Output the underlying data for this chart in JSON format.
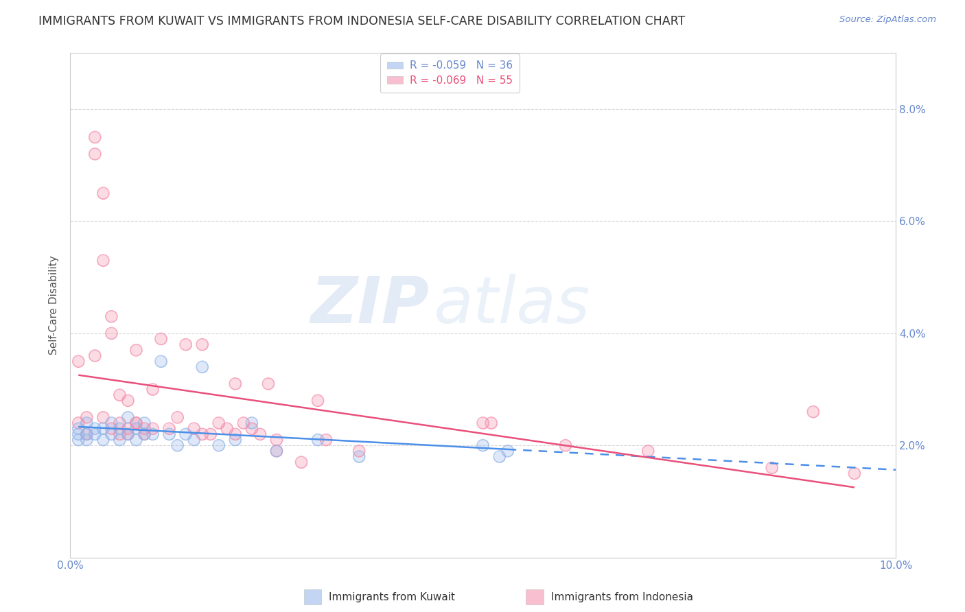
{
  "title": "IMMIGRANTS FROM KUWAIT VS IMMIGRANTS FROM INDONESIA SELF-CARE DISABILITY CORRELATION CHART",
  "source": "Source: ZipAtlas.com",
  "ylabel": "Self-Care Disability",
  "xlim": [
    0,
    0.1
  ],
  "ylim": [
    0,
    0.09
  ],
  "yticks": [
    0.0,
    0.02,
    0.04,
    0.06,
    0.08
  ],
  "ytick_labels": [
    "",
    "2.0%",
    "4.0%",
    "6.0%",
    "8.0%"
  ],
  "xticks": [
    0.0,
    0.02,
    0.04,
    0.06,
    0.08,
    0.1
  ],
  "xtick_labels": [
    "0.0%",
    "",
    "",
    "",
    "",
    "10.0%"
  ],
  "kuwait_color": "#92b4e8",
  "indonesia_color": "#f48caa",
  "kuwait_R": -0.059,
  "kuwait_N": 36,
  "indonesia_R": -0.069,
  "indonesia_N": 55,
  "kuwait_points_x": [
    0.001,
    0.001,
    0.001,
    0.002,
    0.002,
    0.002,
    0.003,
    0.003,
    0.004,
    0.004,
    0.005,
    0.005,
    0.006,
    0.006,
    0.007,
    0.007,
    0.008,
    0.008,
    0.009,
    0.009,
    0.01,
    0.011,
    0.012,
    0.013,
    0.014,
    0.015,
    0.016,
    0.018,
    0.02,
    0.022,
    0.025,
    0.03,
    0.035,
    0.05,
    0.052,
    0.053
  ],
  "kuwait_points_y": [
    0.022,
    0.023,
    0.021,
    0.022,
    0.024,
    0.021,
    0.023,
    0.022,
    0.023,
    0.021,
    0.024,
    0.022,
    0.023,
    0.021,
    0.025,
    0.022,
    0.023,
    0.021,
    0.024,
    0.022,
    0.022,
    0.035,
    0.022,
    0.02,
    0.022,
    0.021,
    0.034,
    0.02,
    0.021,
    0.024,
    0.019,
    0.021,
    0.018,
    0.02,
    0.018,
    0.019
  ],
  "indonesia_points_x": [
    0.001,
    0.001,
    0.002,
    0.002,
    0.003,
    0.003,
    0.003,
    0.004,
    0.004,
    0.004,
    0.005,
    0.005,
    0.005,
    0.006,
    0.006,
    0.006,
    0.007,
    0.007,
    0.007,
    0.008,
    0.008,
    0.008,
    0.009,
    0.009,
    0.01,
    0.01,
    0.011,
    0.012,
    0.013,
    0.014,
    0.015,
    0.016,
    0.017,
    0.018,
    0.019,
    0.02,
    0.021,
    0.022,
    0.023,
    0.024,
    0.025,
    0.025,
    0.03,
    0.031,
    0.035,
    0.05,
    0.051,
    0.06,
    0.07,
    0.085,
    0.09,
    0.095,
    0.016,
    0.02,
    0.028
  ],
  "indonesia_points_y": [
    0.035,
    0.024,
    0.022,
    0.025,
    0.075,
    0.072,
    0.036,
    0.065,
    0.053,
    0.025,
    0.043,
    0.023,
    0.04,
    0.022,
    0.024,
    0.029,
    0.023,
    0.022,
    0.028,
    0.024,
    0.037,
    0.024,
    0.022,
    0.023,
    0.03,
    0.023,
    0.039,
    0.023,
    0.025,
    0.038,
    0.023,
    0.038,
    0.022,
    0.024,
    0.023,
    0.022,
    0.024,
    0.023,
    0.022,
    0.031,
    0.021,
    0.019,
    0.028,
    0.021,
    0.019,
    0.024,
    0.024,
    0.02,
    0.019,
    0.016,
    0.026,
    0.015,
    0.022,
    0.031,
    0.017
  ],
  "watermark_zip": "ZIP",
  "watermark_atlas": "atlas",
  "background_color": "#ffffff",
  "grid_color": "#cccccc",
  "axis_color": "#6688cc",
  "title_fontsize": 12.5,
  "label_fontsize": 11
}
